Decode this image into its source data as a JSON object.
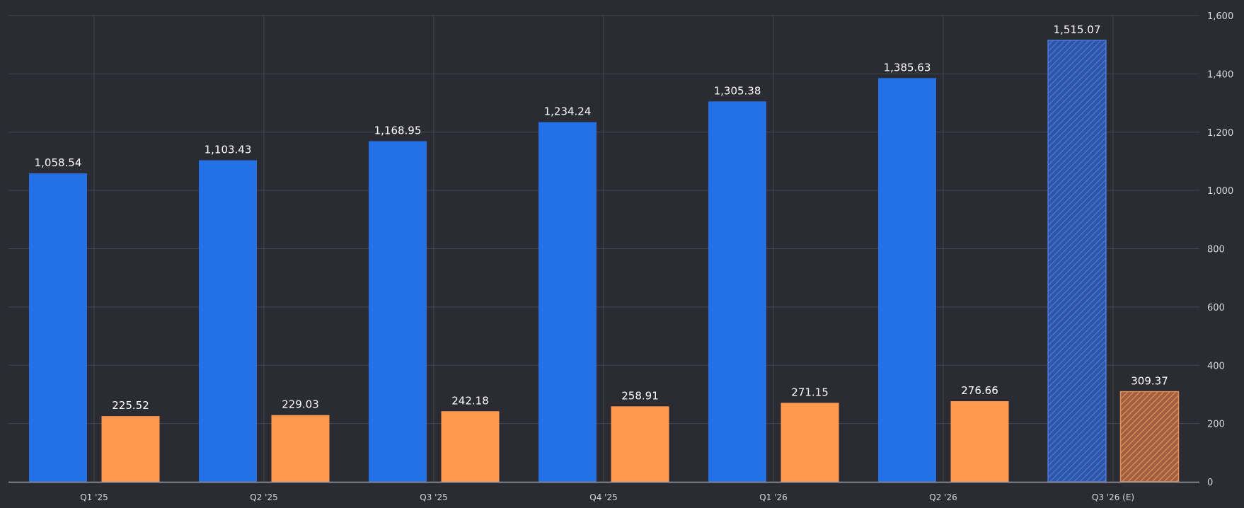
{
  "chart_data": {
    "type": "bar",
    "categories": [
      "Q1 '25",
      "Q2 '25",
      "Q3 '25",
      "Q4 '25",
      "Q1 '26",
      "Q2 '26",
      "Q3 '26 (E)"
    ],
    "series": [
      {
        "values": [
          1058.54,
          1103.43,
          1168.95,
          1234.24,
          1305.38,
          1385.63,
          1515.07
        ],
        "labels": [
          "1,058.54",
          "1,103.43",
          "1,168.95",
          "1,234.24",
          "1,305.38",
          "1,385.63",
          "1,515.07"
        ],
        "color": "#2470e6"
      },
      {
        "values": [
          225.52,
          229.03,
          242.18,
          258.91,
          271.15,
          276.66,
          309.37
        ],
        "labels": [
          "225.52",
          "229.03",
          "242.18",
          "258.91",
          "271.15",
          "276.66",
          "309.37"
        ],
        "color": "#ff9a4d"
      }
    ],
    "estimated_categories": [
      "Q3 '26 (E)"
    ],
    "ylim": [
      0,
      1600
    ],
    "yticks": [
      0,
      200,
      400,
      600,
      800,
      1000,
      1200,
      1400,
      1600
    ],
    "ytick_labels": [
      "0",
      "200",
      "400",
      "600",
      "800",
      "1,000",
      "1,200",
      "1,400",
      "1,600"
    ],
    "y_axis_side": "right",
    "grid": true,
    "legend": false,
    "colors": {
      "background": "#2a2b33",
      "grid": "#44454e",
      "text": "#d8d9de",
      "label": "#ffffff"
    }
  }
}
